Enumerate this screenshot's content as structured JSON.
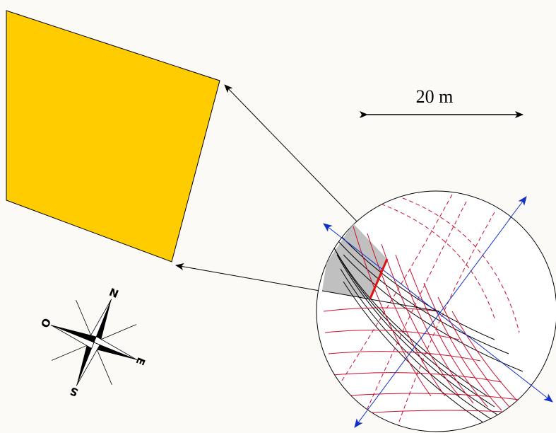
{
  "scale_bar": {
    "label": "20 m"
  },
  "compass": {
    "north": "N",
    "east": "E",
    "south": "S",
    "west": "O"
  },
  "colors": {
    "building": "#ffcc00",
    "sun_path_grid": "#c8102e",
    "shade_region": "#c0c0c0",
    "axes": "#1030c8",
    "obstacle_line": "#e01010"
  }
}
